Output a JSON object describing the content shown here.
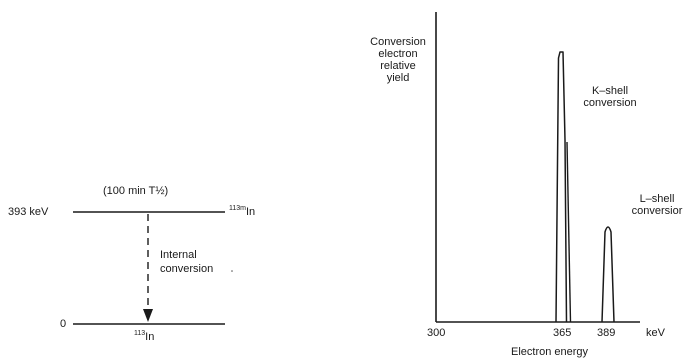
{
  "decay_scheme": {
    "upper_level_energy": "393 keV",
    "half_life": "(100 min T½)",
    "upper_isotope_mass": "113m",
    "upper_isotope_symbol": "In",
    "transition_line1": "Internal",
    "transition_line2": "conversion",
    "ground_level_energy": "0",
    "ground_isotope_mass": "113",
    "ground_isotope_symbol": "In"
  },
  "spectrum": {
    "ylabel_lines": [
      "Conversion",
      "electron",
      "relative",
      "yield"
    ],
    "k_shell_lines": [
      "K–shell",
      "conversion"
    ],
    "l_shell_lines": [
      "L–shell",
      "conversior"
    ],
    "tick_labels": [
      "300",
      "365",
      "389"
    ],
    "unit": "keV",
    "xlabel": "Electron energy"
  },
  "chart_data": {
    "type": "line",
    "xlabel": "Electron energy",
    "x_unit": "keV",
    "ylabel": "Conversion electron relative yield",
    "x_ticks": [
      300,
      365,
      389
    ],
    "series": [
      {
        "name": "K–shell conversion",
        "peak_x": 365,
        "relative_height": 1.0
      },
      {
        "name": "L–shell conversior",
        "peak_x": 389,
        "relative_height": 0.33
      }
    ]
  }
}
